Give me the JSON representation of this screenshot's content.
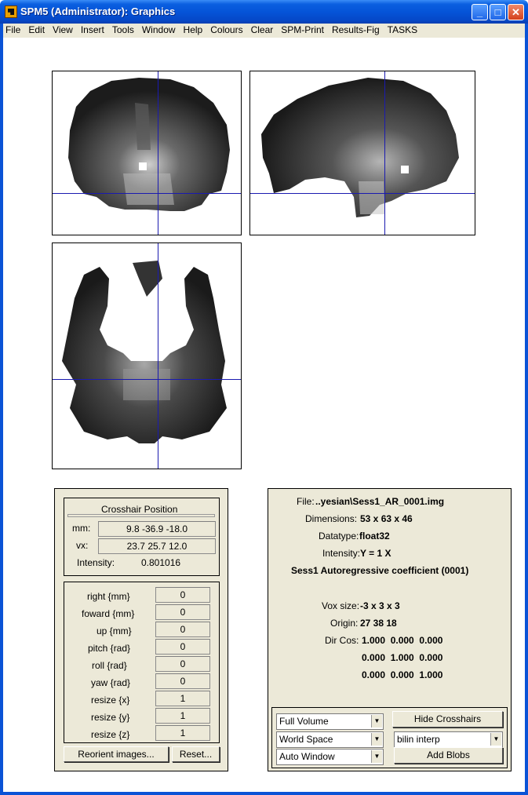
{
  "window": {
    "title": "SPM5 (Administrator): Graphics",
    "minimize": "_",
    "maximize": "□",
    "close": "✕"
  },
  "menu": [
    "File",
    "Edit",
    "View",
    "Insert",
    "Tools",
    "Window",
    "Help",
    "Colours",
    "Clear",
    "SPM-Print",
    "Results-Fig",
    "TASKS"
  ],
  "crosshair": {
    "title": "Crosshair Position",
    "mm_label": "mm:",
    "mm_value": "9.8 -36.9 -18.0",
    "vx_label": "vx:",
    "vx_value": "23.7 25.7 12.0",
    "intensity_label": "Intensity:",
    "intensity_value": "0.801016"
  },
  "reorient": {
    "fields": [
      {
        "label": "right  {mm}",
        "value": "0"
      },
      {
        "label": "foward  {mm}",
        "value": "0"
      },
      {
        "label": "up  {mm}",
        "value": "0"
      },
      {
        "label": "pitch  {rad}",
        "value": "0"
      },
      {
        "label": "roll  {rad}",
        "value": "0"
      },
      {
        "label": "yaw  {rad}",
        "value": "0"
      },
      {
        "label": "resize  {x}",
        "value": "1"
      },
      {
        "label": "resize  {y}",
        "value": "1"
      },
      {
        "label": "resize  {z}",
        "value": "1"
      }
    ],
    "reorient_button": "Reorient images...",
    "reset_button": "Reset..."
  },
  "info": {
    "file_label": "File:",
    "file_value": "..yesian\\Sess1_AR_0001.img",
    "dim_label": "Dimensions:",
    "dim_value": "53 x 63 x 46",
    "dtype_label": "Datatype:",
    "dtype_value": "float32",
    "intensity_label": "Intensity:",
    "intensity_value": "Y = 1 X",
    "description": "Sess1 Autoregressive coefficient (0001)",
    "voxsize_label": "Vox size:",
    "voxsize_value": "-3 x 3 x 3",
    "origin_label": "Origin:",
    "origin_value": "27 38 18",
    "dircos_label": "Dir Cos:",
    "dircos_rows": [
      "1.000  0.000  0.000",
      "0.000  1.000  0.000",
      "0.000  0.000  1.000"
    ]
  },
  "controls": {
    "volume_select": "Full Volume",
    "space_select": "World Space",
    "window_select": "Auto Window",
    "hide_crosshairs": "Hide Crosshairs",
    "interp_select": "bilin interp",
    "add_blobs": "Add Blobs"
  },
  "colors": {
    "crosshair": "#1a1ab0",
    "panel_bg": "#ece9d8",
    "titlebar": "#0554d8"
  }
}
